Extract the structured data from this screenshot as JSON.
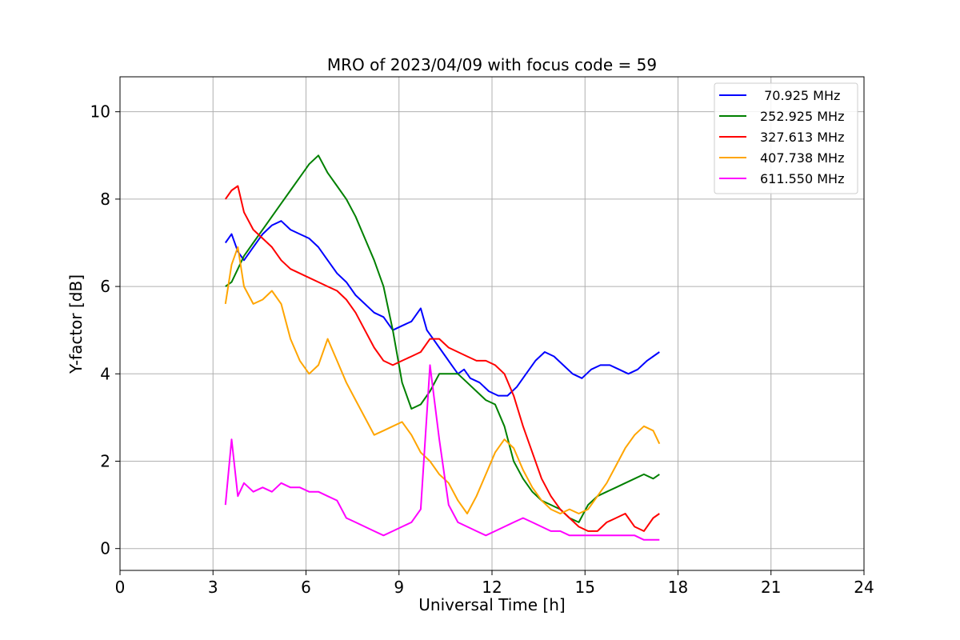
{
  "chart_data": {
    "type": "line",
    "title": "MRO of 2023/04/09 with focus code = 59",
    "xlabel": "Universal Time [h]",
    "ylabel": "Y-factor [dB]",
    "xlim": [
      0,
      24
    ],
    "ylim": [
      -0.5,
      10.8
    ],
    "xticks": [
      0,
      3,
      6,
      9,
      12,
      15,
      18,
      21,
      24
    ],
    "yticks": [
      0,
      2,
      4,
      6,
      8,
      10
    ],
    "grid": true,
    "legend_position": "top-right",
    "series": [
      {
        "name": " 70.925 MHz",
        "color": "#0000ff",
        "x": [
          3.4,
          3.6,
          3.8,
          4.0,
          4.3,
          4.6,
          4.9,
          5.2,
          5.5,
          5.8,
          6.1,
          6.4,
          6.7,
          7.0,
          7.3,
          7.6,
          7.9,
          8.2,
          8.5,
          8.8,
          9.1,
          9.4,
          9.7,
          9.9,
          10.1,
          10.3,
          10.5,
          10.7,
          10.9,
          11.1,
          11.3,
          11.6,
          11.9,
          12.2,
          12.5,
          12.8,
          13.1,
          13.4,
          13.7,
          14.0,
          14.3,
          14.6,
          14.9,
          15.2,
          15.5,
          15.8,
          16.1,
          16.4,
          16.7,
          17.0,
          17.2,
          17.4
        ],
        "y": [
          7.0,
          7.2,
          6.8,
          6.6,
          6.9,
          7.2,
          7.4,
          7.5,
          7.3,
          7.2,
          7.1,
          6.9,
          6.6,
          6.3,
          6.1,
          5.8,
          5.6,
          5.4,
          5.3,
          5.0,
          5.1,
          5.2,
          5.5,
          5.0,
          4.8,
          4.6,
          4.4,
          4.2,
          4.0,
          4.1,
          3.9,
          3.8,
          3.6,
          3.5,
          3.5,
          3.7,
          4.0,
          4.3,
          4.5,
          4.4,
          4.2,
          4.0,
          3.9,
          4.1,
          4.2,
          4.2,
          4.1,
          4.0,
          4.1,
          4.3,
          4.4,
          4.5
        ]
      },
      {
        "name": "252.925 MHz",
        "color": "#008000",
        "x": [
          3.4,
          3.6,
          3.8,
          4.0,
          4.3,
          4.6,
          4.9,
          5.2,
          5.5,
          5.8,
          6.1,
          6.4,
          6.7,
          7.0,
          7.3,
          7.6,
          7.9,
          8.2,
          8.5,
          8.8,
          9.1,
          9.4,
          9.7,
          10.0,
          10.3,
          10.6,
          10.9,
          11.2,
          11.5,
          11.8,
          12.1,
          12.4,
          12.7,
          13.0,
          13.3,
          13.6,
          13.9,
          14.2,
          14.5,
          14.8,
          15.1,
          15.4,
          15.7,
          16.0,
          16.3,
          16.6,
          16.9,
          17.2,
          17.4
        ],
        "y": [
          6.0,
          6.1,
          6.4,
          6.7,
          7.0,
          7.3,
          7.6,
          7.9,
          8.2,
          8.5,
          8.8,
          9.0,
          8.6,
          8.3,
          8.0,
          7.6,
          7.1,
          6.6,
          6.0,
          5.0,
          3.8,
          3.2,
          3.3,
          3.6,
          4.0,
          4.0,
          4.0,
          3.8,
          3.6,
          3.4,
          3.3,
          2.8,
          2.0,
          1.6,
          1.3,
          1.1,
          1.0,
          0.9,
          0.7,
          0.6,
          1.0,
          1.2,
          1.3,
          1.4,
          1.5,
          1.6,
          1.7,
          1.6,
          1.7
        ]
      },
      {
        "name": "327.613 MHz",
        "color": "#ff0000",
        "x": [
          3.4,
          3.6,
          3.8,
          4.0,
          4.3,
          4.6,
          4.9,
          5.2,
          5.5,
          5.8,
          6.1,
          6.4,
          6.7,
          7.0,
          7.3,
          7.6,
          7.9,
          8.2,
          8.5,
          8.8,
          9.1,
          9.4,
          9.7,
          10.0,
          10.3,
          10.6,
          10.9,
          11.2,
          11.5,
          11.8,
          12.1,
          12.4,
          12.7,
          13.0,
          13.3,
          13.6,
          13.9,
          14.2,
          14.5,
          14.8,
          15.1,
          15.4,
          15.7,
          16.0,
          16.3,
          16.6,
          16.9,
          17.2,
          17.4
        ],
        "y": [
          8.0,
          8.2,
          8.3,
          7.7,
          7.3,
          7.1,
          6.9,
          6.6,
          6.4,
          6.3,
          6.2,
          6.1,
          6.0,
          5.9,
          5.7,
          5.4,
          5.0,
          4.6,
          4.3,
          4.2,
          4.3,
          4.4,
          4.5,
          4.8,
          4.8,
          4.6,
          4.5,
          4.4,
          4.3,
          4.3,
          4.2,
          4.0,
          3.5,
          2.8,
          2.2,
          1.6,
          1.2,
          0.9,
          0.7,
          0.5,
          0.4,
          0.4,
          0.6,
          0.7,
          0.8,
          0.5,
          0.4,
          0.7,
          0.8
        ]
      },
      {
        "name": "407.738 MHz",
        "color": "#ffa500",
        "x": [
          3.4,
          3.6,
          3.8,
          4.0,
          4.3,
          4.6,
          4.9,
          5.2,
          5.5,
          5.8,
          6.1,
          6.4,
          6.7,
          7.0,
          7.3,
          7.6,
          7.9,
          8.2,
          8.5,
          8.8,
          9.1,
          9.4,
          9.7,
          10.0,
          10.3,
          10.6,
          10.9,
          11.2,
          11.5,
          11.8,
          12.1,
          12.4,
          12.7,
          13.0,
          13.3,
          13.6,
          13.9,
          14.2,
          14.5,
          14.8,
          15.1,
          15.4,
          15.7,
          16.0,
          16.3,
          16.6,
          16.9,
          17.2,
          17.4
        ],
        "y": [
          5.6,
          6.5,
          6.9,
          6.0,
          5.6,
          5.7,
          5.9,
          5.6,
          4.8,
          4.3,
          4.0,
          4.2,
          4.8,
          4.3,
          3.8,
          3.4,
          3.0,
          2.6,
          2.7,
          2.8,
          2.9,
          2.6,
          2.2,
          2.0,
          1.7,
          1.5,
          1.1,
          0.8,
          1.2,
          1.7,
          2.2,
          2.5,
          2.3,
          1.8,
          1.4,
          1.1,
          0.9,
          0.8,
          0.9,
          0.8,
          0.9,
          1.2,
          1.5,
          1.9,
          2.3,
          2.6,
          2.8,
          2.7,
          2.4
        ]
      },
      {
        "name": "611.550 MHz",
        "color": "#ff00ff",
        "x": [
          3.4,
          3.6,
          3.8,
          4.0,
          4.3,
          4.6,
          4.9,
          5.2,
          5.5,
          5.8,
          6.1,
          6.4,
          6.7,
          7.0,
          7.3,
          7.6,
          7.9,
          8.2,
          8.5,
          8.8,
          9.1,
          9.4,
          9.7,
          10.0,
          10.3,
          10.6,
          10.9,
          11.2,
          11.5,
          11.8,
          12.1,
          12.4,
          12.7,
          13.0,
          13.3,
          13.6,
          13.9,
          14.2,
          14.5,
          14.8,
          15.1,
          15.4,
          15.7,
          16.0,
          16.3,
          16.6,
          16.9,
          17.2,
          17.4
        ],
        "y": [
          1.0,
          2.5,
          1.2,
          1.5,
          1.3,
          1.4,
          1.3,
          1.5,
          1.4,
          1.4,
          1.3,
          1.3,
          1.2,
          1.1,
          0.7,
          0.6,
          0.5,
          0.4,
          0.3,
          0.4,
          0.5,
          0.6,
          0.9,
          4.2,
          2.5,
          1.0,
          0.6,
          0.5,
          0.4,
          0.3,
          0.4,
          0.5,
          0.6,
          0.7,
          0.6,
          0.5,
          0.4,
          0.4,
          0.3,
          0.3,
          0.3,
          0.3,
          0.3,
          0.3,
          0.3,
          0.3,
          0.2,
          0.2,
          0.2
        ]
      }
    ]
  }
}
